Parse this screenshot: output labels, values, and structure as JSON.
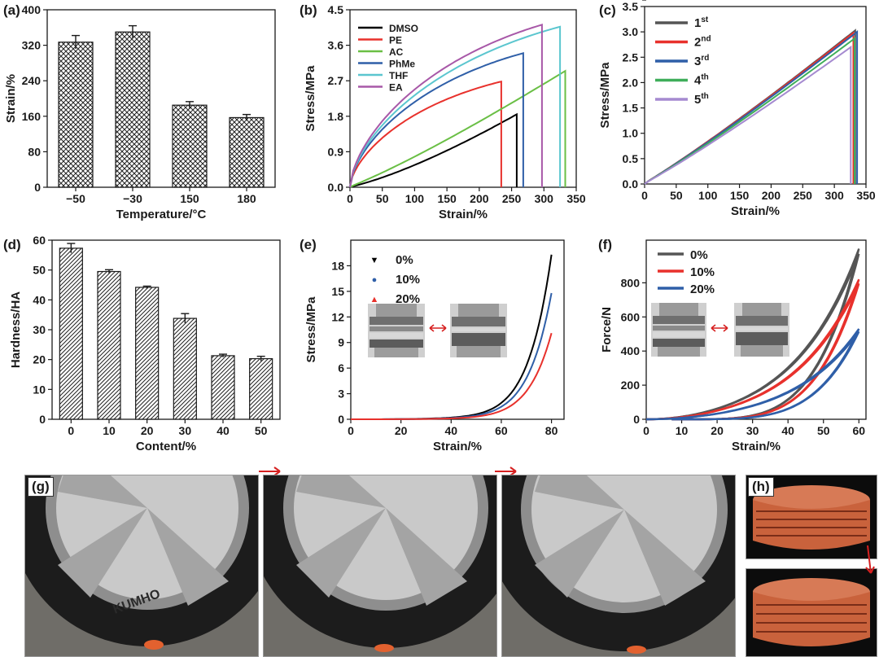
{
  "chart_data": [
    {
      "id": "a",
      "panel_label": "(a)",
      "type": "bar",
      "categories": [
        "−50",
        "−30",
        "150",
        "180"
      ],
      "values": [
        327,
        350,
        185,
        157
      ],
      "errors": [
        15,
        14,
        8,
        7
      ],
      "xlabel": "Temperature/°C",
      "ylabel": "Strain/%",
      "ylim": [
        0,
        400
      ],
      "yticks": [
        "0",
        "80",
        "160",
        "240",
        "320",
        "400"
      ],
      "pattern": "crosshatch"
    },
    {
      "id": "b",
      "panel_label": "(b)",
      "type": "line",
      "xlabel": "Strain/%",
      "ylabel": "Stress/MPa",
      "xlim": [
        0,
        350
      ],
      "ylim": [
        0,
        4.5
      ],
      "xticks": [
        "0",
        "50",
        "100",
        "150",
        "200",
        "250",
        "300",
        "350"
      ],
      "yticks": [
        "0.0",
        "0.9",
        "1.8",
        "2.7",
        "3.6",
        "4.5"
      ],
      "series": [
        {
          "name": "DMSO",
          "color": "#000000",
          "break_strain": 258,
          "break_stress": 1.85,
          "curve": 1.35
        },
        {
          "name": "PE",
          "color": "#e8312c",
          "break_strain": 234,
          "break_stress": 2.68,
          "curve": 0.7
        },
        {
          "name": "AC",
          "color": "#6abf45",
          "break_strain": 333,
          "break_stress": 2.95,
          "curve": 1.2
        },
        {
          "name": "PhMe",
          "color": "#2f5fa8",
          "break_strain": 268,
          "break_stress": 3.4,
          "curve": 0.7
        },
        {
          "name": "THF",
          "color": "#5bc6cf",
          "break_strain": 325,
          "break_stress": 4.07,
          "curve": 0.7
        },
        {
          "name": "EA",
          "color": "#a858a8",
          "break_strain": 297,
          "break_stress": 4.12,
          "curve": 0.7
        }
      ]
    },
    {
      "id": "c",
      "panel_label": "(c)",
      "type": "line",
      "xlabel": "Strain/%",
      "ylabel": "Stress/MPa",
      "xlim": [
        0,
        350
      ],
      "ylim": [
        0,
        3.5
      ],
      "xticks": [
        "0",
        "50",
        "100",
        "150",
        "200",
        "250",
        "300",
        "350"
      ],
      "yticks": [
        "0.0",
        "0.5",
        "1.0",
        "1.5",
        "2.0",
        "2.5",
        "3.0",
        "3.5"
      ],
      "series": [
        {
          "name": "1",
          "sup": "st",
          "color": "#555555",
          "break_strain": 333,
          "break_stress": 3.03,
          "curve": 1.15
        },
        {
          "name": "2",
          "sup": "nd",
          "color": "#e8312c",
          "break_strain": 330,
          "break_stress": 2.98,
          "curve": 1.15
        },
        {
          "name": "3",
          "sup": "rd",
          "color": "#2f5fa8",
          "break_strain": 336,
          "break_stress": 3.0,
          "curve": 1.15
        },
        {
          "name": "4",
          "sup": "th",
          "color": "#3fae5a",
          "break_strain": 332,
          "break_stress": 2.87,
          "curve": 1.15
        },
        {
          "name": "5",
          "sup": "th",
          "color": "#a58ad0",
          "break_strain": 326,
          "break_stress": 2.7,
          "curve": 1.15
        }
      ]
    },
    {
      "id": "d",
      "panel_label": "(d)",
      "type": "bar",
      "categories": [
        "0",
        "10",
        "20",
        "30",
        "40",
        "50"
      ],
      "values": [
        57.3,
        49.5,
        44.2,
        33.8,
        21.3,
        20.3
      ],
      "errors": [
        1.6,
        0.6,
        0.4,
        1.6,
        0.5,
        0.8
      ],
      "xlabel": "Content/%",
      "ylabel": "Hardness/HA",
      "ylim": [
        0,
        60
      ],
      "yticks": [
        "0",
        "10",
        "20",
        "30",
        "40",
        "50",
        "60"
      ],
      "pattern": "diagonal"
    },
    {
      "id": "e",
      "panel_label": "(e)",
      "type": "line",
      "xlabel": "Strain/%",
      "ylabel": "Stress/MPa",
      "xlim": [
        0,
        85
      ],
      "ylim": [
        0,
        21
      ],
      "xticks": [
        "0",
        "20",
        "40",
        "60",
        "80"
      ],
      "yticks": [
        "0",
        "3",
        "6",
        "9",
        "12",
        "15",
        "18"
      ],
      "series": [
        {
          "name": "0%",
          "marker": "▼",
          "color": "#000000",
          "end_strain": 80,
          "end_stress": 19.3,
          "exponent": 9
        },
        {
          "name": "10%",
          "marker": "●",
          "color": "#2f5fa8",
          "end_strain": 80,
          "end_stress": 14.8,
          "exponent": 9
        },
        {
          "name": "20%",
          "marker": "▲",
          "color": "#e8312c",
          "end_strain": 80,
          "end_stress": 10.1,
          "exponent": 9
        }
      ]
    },
    {
      "id": "f",
      "panel_label": "(f)",
      "type": "line",
      "xlabel": "Strain/%",
      "ylabel": "Force/N",
      "xlim": [
        0,
        62
      ],
      "ylim": [
        0,
        1050
      ],
      "xticks": [
        "0",
        "10",
        "20",
        "30",
        "40",
        "50",
        "60"
      ],
      "yticks": [
        "0",
        "200",
        "400",
        "600",
        "800",
        "1 000"
      ],
      "series": [
        {
          "name": "0%",
          "color": "#555555",
          "peak_strain": 60,
          "peak_force": 1000
        },
        {
          "name": "10%",
          "color": "#e8312c",
          "peak_strain": 60,
          "peak_force": 820
        },
        {
          "name": "20%",
          "color": "#2f5fa8",
          "peak_strain": 60,
          "peak_force": 530
        }
      ]
    }
  ],
  "photos": {
    "g_label": "(g)",
    "h_label": "(h)",
    "tire_text": "KUMHO"
  }
}
